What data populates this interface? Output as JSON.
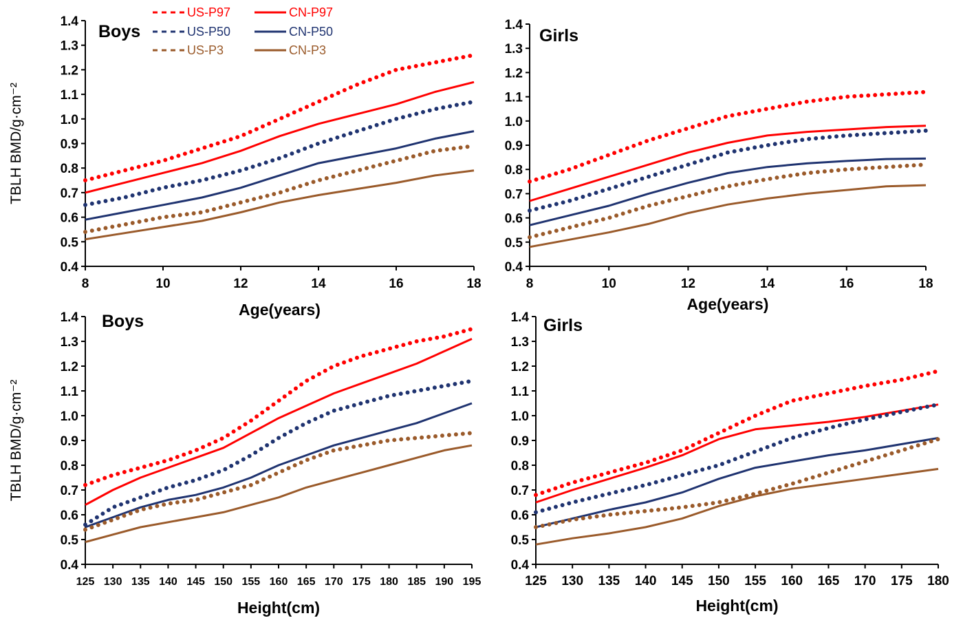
{
  "colors": {
    "P97": "#ff0000",
    "P50": "#1f3370",
    "P3": "#9a5a2a"
  },
  "legend": [
    {
      "label": "US-P97",
      "style": "dotted",
      "color_key": "P97"
    },
    {
      "label": "CN-P97",
      "style": "solid",
      "color_key": "P97"
    },
    {
      "label": "US-P50",
      "style": "dotted",
      "color_key": "P50"
    },
    {
      "label": "CN-P50",
      "style": "solid",
      "color_key": "P50"
    },
    {
      "label": "US-P3",
      "style": "dotted",
      "color_key": "P3"
    },
    {
      "label": "CN-P3",
      "style": "solid",
      "color_key": "P3"
    }
  ],
  "chart_data": [
    {
      "type": "line",
      "title": "Boys",
      "xlabel": "Age(years)",
      "ylabel": "TBLH BMD/g·cm⁻²",
      "xlim": [
        8,
        18
      ],
      "ylim": [
        0.4,
        1.4
      ],
      "xticks": [
        8,
        10,
        12,
        14,
        16,
        18
      ],
      "yticks": [
        "0.4",
        "0.5",
        "0.6",
        "0.7",
        "0.8",
        "0.9",
        "1.0",
        "1.1",
        "1.2",
        "1.3",
        "1.4"
      ],
      "x": [
        8,
        9,
        10,
        11,
        12,
        13,
        14,
        15,
        16,
        17,
        18
      ],
      "series": [
        {
          "name": "US-P97",
          "style": "dotted",
          "color_key": "P97",
          "values": [
            0.75,
            0.79,
            0.83,
            0.88,
            0.93,
            1.0,
            1.07,
            1.14,
            1.2,
            1.23,
            1.26
          ]
        },
        {
          "name": "CN-P97",
          "style": "solid",
          "color_key": "P97",
          "values": [
            0.7,
            0.74,
            0.78,
            0.82,
            0.87,
            0.93,
            0.98,
            1.02,
            1.06,
            1.11,
            1.15
          ]
        },
        {
          "name": "US-P50",
          "style": "dotted",
          "color_key": "P50",
          "values": [
            0.65,
            0.68,
            0.72,
            0.75,
            0.79,
            0.84,
            0.9,
            0.95,
            1.0,
            1.04,
            1.07
          ]
        },
        {
          "name": "CN-P50",
          "style": "solid",
          "color_key": "P50",
          "values": [
            0.59,
            0.62,
            0.65,
            0.68,
            0.72,
            0.77,
            0.82,
            0.85,
            0.88,
            0.92,
            0.95
          ]
        },
        {
          "name": "US-P3",
          "style": "dotted",
          "color_key": "P3",
          "values": [
            0.54,
            0.57,
            0.6,
            0.62,
            0.66,
            0.7,
            0.75,
            0.79,
            0.83,
            0.87,
            0.89
          ]
        },
        {
          "name": "CN-P3",
          "style": "solid",
          "color_key": "P3",
          "values": [
            0.51,
            0.535,
            0.56,
            0.585,
            0.62,
            0.66,
            0.69,
            0.715,
            0.74,
            0.77,
            0.79
          ]
        }
      ]
    },
    {
      "type": "line",
      "title": "Girls",
      "xlabel": "Age(years)",
      "ylabel": "",
      "xlim": [
        8,
        18
      ],
      "ylim": [
        0.4,
        1.4
      ],
      "xticks": [
        8,
        10,
        12,
        14,
        16,
        18
      ],
      "yticks": [
        "0.4",
        "0.5",
        "0.6",
        "0.7",
        "0.8",
        "0.9",
        "1.0",
        "1.1",
        "1.2",
        "1.3",
        "1.4"
      ],
      "x": [
        8,
        9,
        10,
        11,
        12,
        13,
        14,
        15,
        16,
        17,
        18
      ],
      "series": [
        {
          "name": "US-P97",
          "style": "dotted",
          "color_key": "P97",
          "values": [
            0.75,
            0.8,
            0.86,
            0.92,
            0.97,
            1.02,
            1.05,
            1.08,
            1.1,
            1.11,
            1.12
          ]
        },
        {
          "name": "CN-P97",
          "style": "solid",
          "color_key": "P97",
          "values": [
            0.67,
            0.72,
            0.77,
            0.82,
            0.87,
            0.91,
            0.94,
            0.955,
            0.965,
            0.975,
            0.98
          ]
        },
        {
          "name": "US-P50",
          "style": "dotted",
          "color_key": "P50",
          "values": [
            0.63,
            0.67,
            0.72,
            0.77,
            0.82,
            0.87,
            0.9,
            0.925,
            0.94,
            0.95,
            0.96
          ]
        },
        {
          "name": "CN-P50",
          "style": "solid",
          "color_key": "P50",
          "values": [
            0.57,
            0.61,
            0.65,
            0.7,
            0.745,
            0.785,
            0.81,
            0.825,
            0.835,
            0.843,
            0.845
          ]
        },
        {
          "name": "US-P3",
          "style": "dotted",
          "color_key": "P3",
          "values": [
            0.52,
            0.56,
            0.6,
            0.65,
            0.69,
            0.73,
            0.76,
            0.785,
            0.8,
            0.81,
            0.82
          ]
        },
        {
          "name": "CN-P3",
          "style": "solid",
          "color_key": "P3",
          "values": [
            0.48,
            0.51,
            0.54,
            0.575,
            0.62,
            0.655,
            0.68,
            0.7,
            0.715,
            0.73,
            0.735
          ]
        }
      ]
    },
    {
      "type": "line",
      "title": "Boys",
      "xlabel": "Height(cm)",
      "ylabel": "TBLH BMD/g·cm⁻²",
      "xlim": [
        125,
        195
      ],
      "ylim": [
        0.4,
        1.4
      ],
      "xticks": [
        125,
        130,
        135,
        140,
        145,
        150,
        155,
        160,
        165,
        170,
        175,
        180,
        185,
        190,
        195
      ],
      "yticks": [
        "0.4",
        "0.5",
        "0.6",
        "0.7",
        "0.8",
        "0.9",
        "1.0",
        "1.1",
        "1.2",
        "1.3",
        "1.4"
      ],
      "x": [
        125,
        130,
        135,
        140,
        145,
        150,
        155,
        160,
        165,
        170,
        175,
        180,
        185,
        190,
        195
      ],
      "series": [
        {
          "name": "US-P97",
          "style": "dotted",
          "color_key": "P97",
          "values": [
            0.72,
            0.76,
            0.79,
            0.82,
            0.86,
            0.91,
            0.98,
            1.06,
            1.14,
            1.2,
            1.24,
            1.27,
            1.3,
            1.32,
            1.35
          ]
        },
        {
          "name": "CN-P97",
          "style": "solid",
          "color_key": "P97",
          "values": [
            0.64,
            0.7,
            0.75,
            0.79,
            0.83,
            0.87,
            0.93,
            0.99,
            1.04,
            1.09,
            1.13,
            1.17,
            1.21,
            1.26,
            1.31
          ]
        },
        {
          "name": "US-P50",
          "style": "dotted",
          "color_key": "P50",
          "values": [
            0.56,
            0.63,
            0.67,
            0.71,
            0.74,
            0.78,
            0.84,
            0.91,
            0.97,
            1.02,
            1.05,
            1.08,
            1.1,
            1.12,
            1.14
          ]
        },
        {
          "name": "CN-P50",
          "style": "solid",
          "color_key": "P50",
          "values": [
            0.55,
            0.59,
            0.63,
            0.66,
            0.68,
            0.71,
            0.75,
            0.8,
            0.84,
            0.88,
            0.91,
            0.94,
            0.97,
            1.01,
            1.05
          ]
        },
        {
          "name": "US-P3",
          "style": "dotted",
          "color_key": "P3",
          "values": [
            0.54,
            0.58,
            0.62,
            0.645,
            0.66,
            0.69,
            0.72,
            0.77,
            0.82,
            0.86,
            0.88,
            0.9,
            0.91,
            0.92,
            0.93
          ]
        },
        {
          "name": "CN-P3",
          "style": "solid",
          "color_key": "P3",
          "values": [
            0.49,
            0.52,
            0.55,
            0.57,
            0.59,
            0.61,
            0.64,
            0.67,
            0.71,
            0.74,
            0.77,
            0.8,
            0.83,
            0.86,
            0.88
          ]
        }
      ]
    },
    {
      "type": "line",
      "title": "Girls",
      "xlabel": "Height(cm)",
      "ylabel": "",
      "xlim": [
        125,
        180
      ],
      "ylim": [
        0.4,
        1.4
      ],
      "xticks": [
        125,
        130,
        135,
        140,
        145,
        150,
        155,
        160,
        165,
        170,
        175,
        180
      ],
      "yticks": [
        "0.4",
        "0.5",
        "0.6",
        "0.7",
        "0.8",
        "0.9",
        "1.0",
        "1.1",
        "1.2",
        "1.3",
        "1.4"
      ],
      "x": [
        125,
        130,
        135,
        140,
        145,
        150,
        155,
        160,
        165,
        170,
        175,
        180
      ],
      "series": [
        {
          "name": "US-P97",
          "style": "dotted",
          "color_key": "P97",
          "values": [
            0.68,
            0.73,
            0.77,
            0.81,
            0.86,
            0.93,
            1.0,
            1.06,
            1.09,
            1.12,
            1.145,
            1.18
          ]
        },
        {
          "name": "CN-P97",
          "style": "solid",
          "color_key": "P97",
          "values": [
            0.65,
            0.7,
            0.745,
            0.79,
            0.84,
            0.905,
            0.945,
            0.96,
            0.975,
            0.995,
            1.02,
            1.045
          ]
        },
        {
          "name": "US-P50",
          "style": "dotted",
          "color_key": "P50",
          "values": [
            0.61,
            0.65,
            0.685,
            0.72,
            0.76,
            0.8,
            0.855,
            0.91,
            0.95,
            0.985,
            1.015,
            1.045
          ]
        },
        {
          "name": "CN-P50",
          "style": "solid",
          "color_key": "P50",
          "values": [
            0.55,
            0.585,
            0.62,
            0.65,
            0.69,
            0.745,
            0.79,
            0.815,
            0.84,
            0.86,
            0.885,
            0.91
          ]
        },
        {
          "name": "US-P3",
          "style": "dotted",
          "color_key": "P3",
          "values": [
            0.55,
            0.58,
            0.6,
            0.615,
            0.63,
            0.65,
            0.685,
            0.725,
            0.77,
            0.815,
            0.86,
            0.905
          ]
        },
        {
          "name": "CN-P3",
          "style": "solid",
          "color_key": "P3",
          "values": [
            0.48,
            0.505,
            0.525,
            0.55,
            0.585,
            0.635,
            0.675,
            0.705,
            0.725,
            0.745,
            0.765,
            0.785
          ]
        }
      ]
    }
  ]
}
